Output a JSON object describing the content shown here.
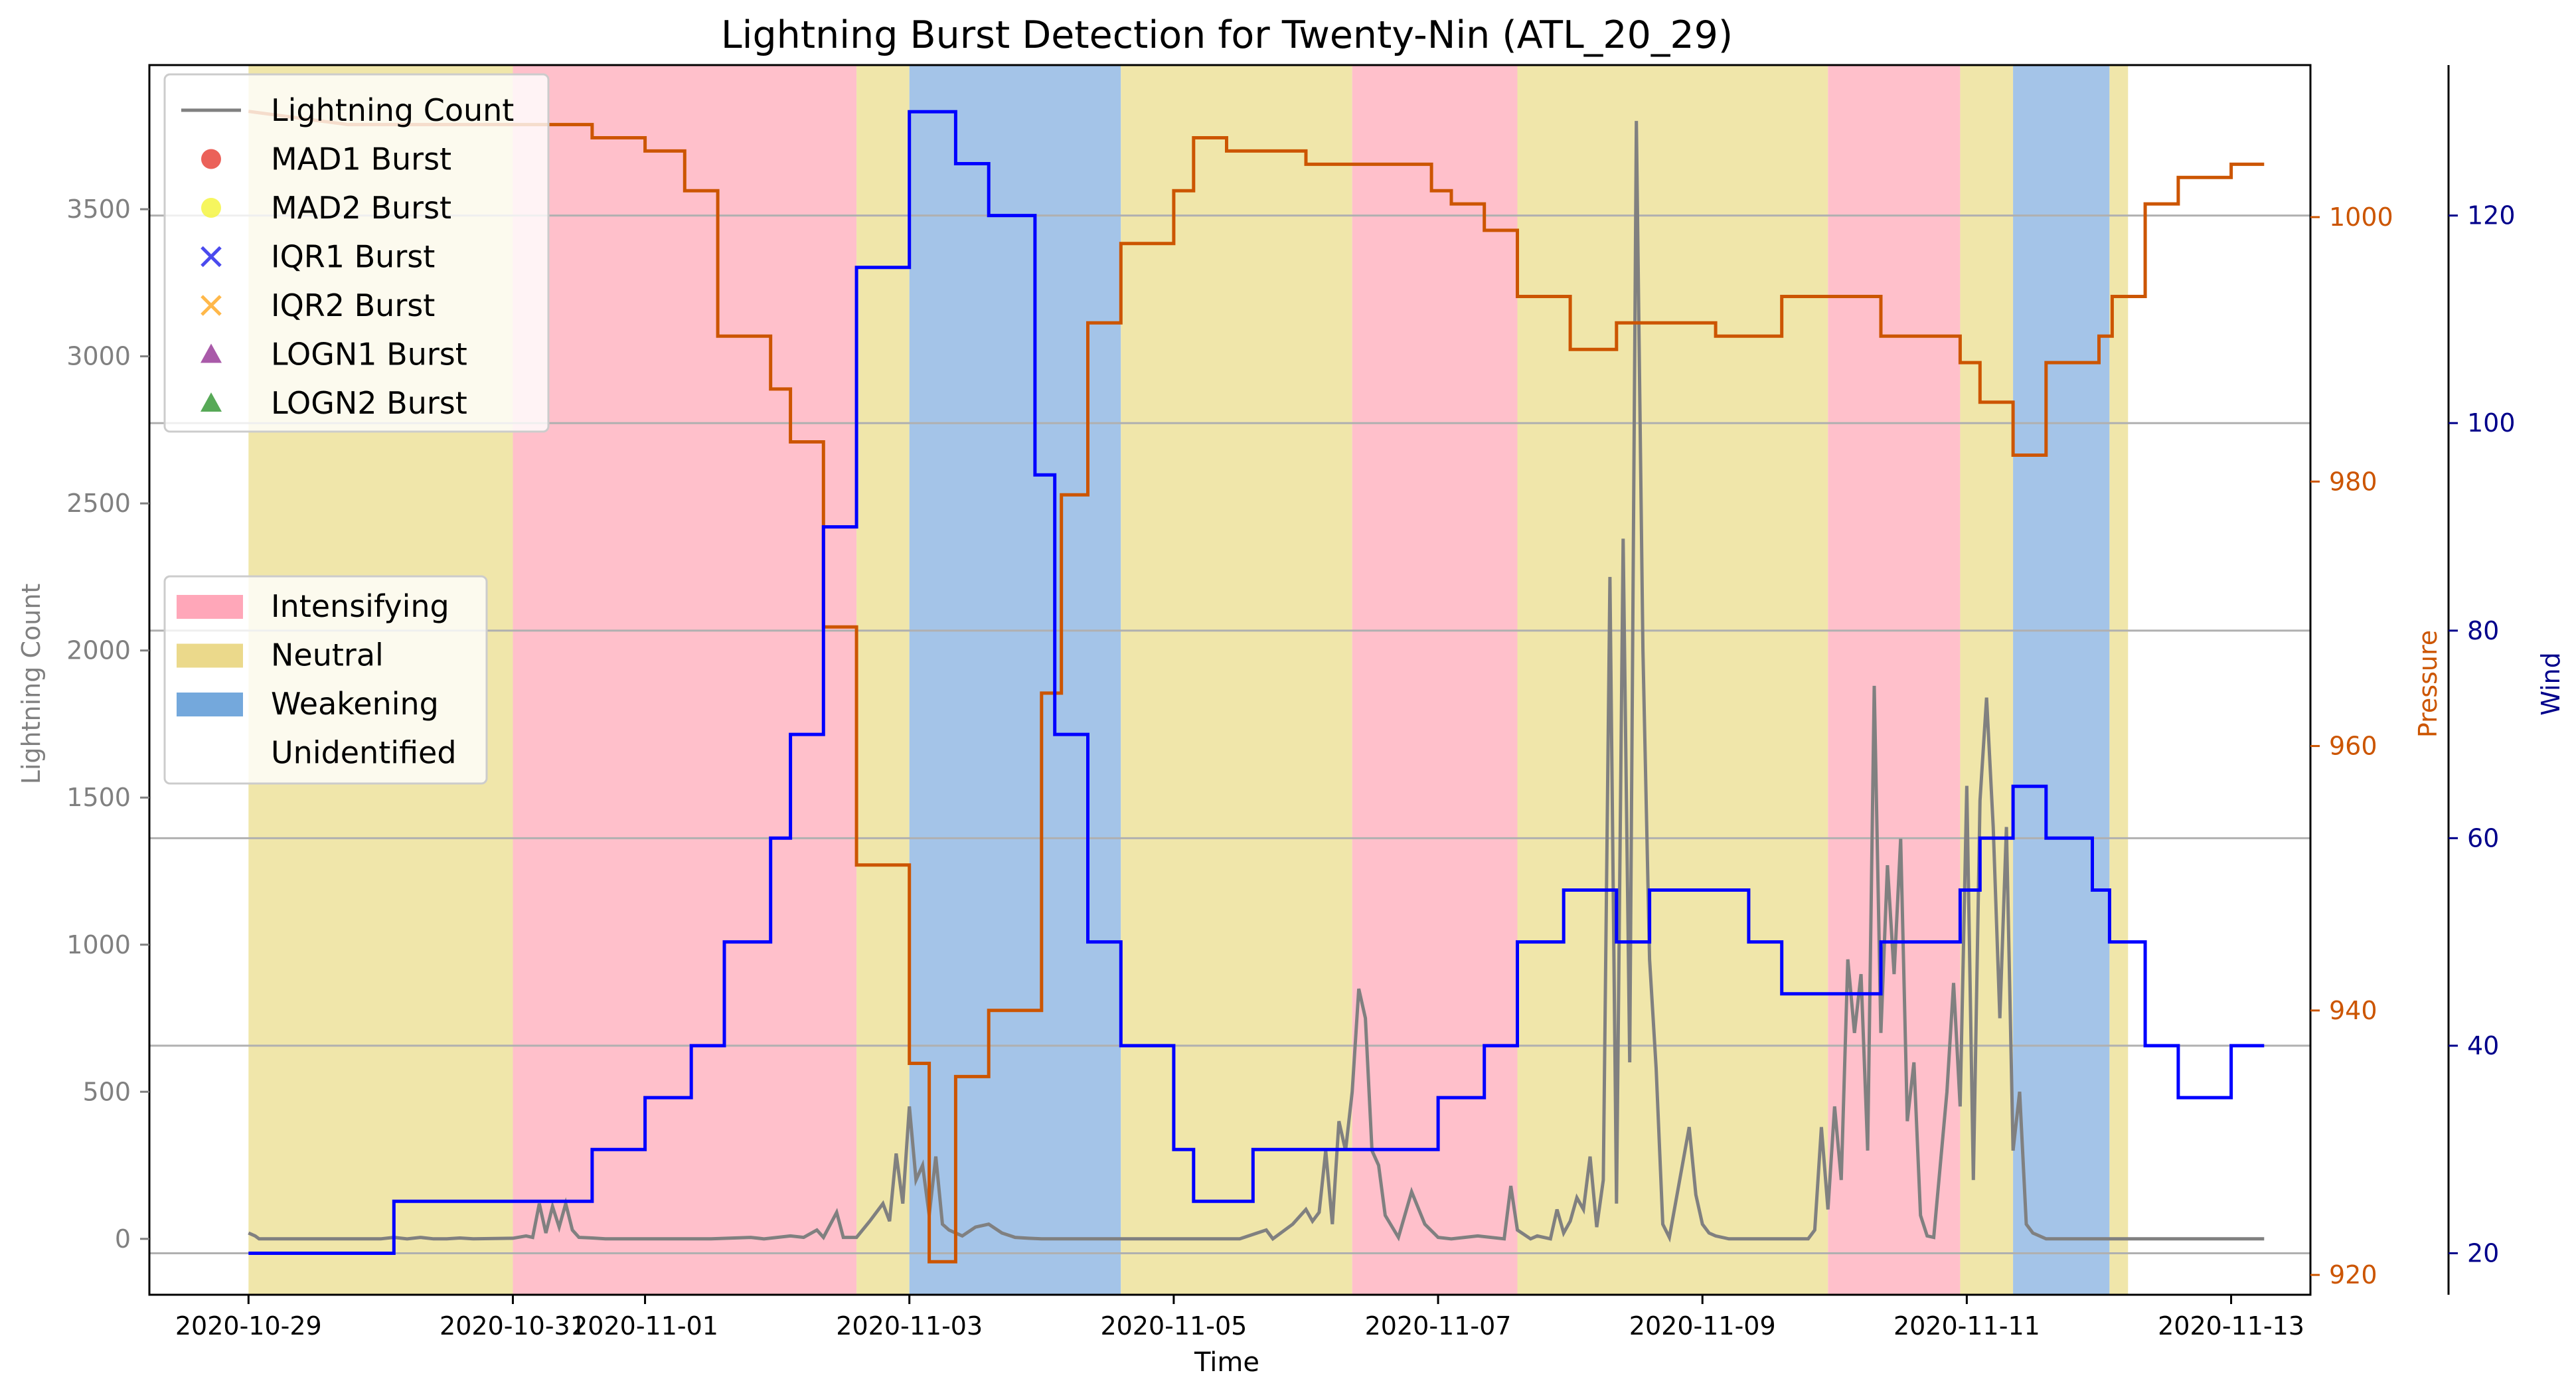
{
  "chart_data": {
    "type": "line",
    "title": "Lightning Burst Detection for Twenty-Nin (ATL_20_29)",
    "xlabel": "Time",
    "ylabel_left": "Lightning Count",
    "ylabel_right1": "Pressure",
    "ylabel_right2": "Wind",
    "x_ticks": [
      "2020-10-29",
      "2020-10-31",
      "2020-11-01",
      "2020-11-03",
      "2020-11-05",
      "2020-11-07",
      "2020-11-09",
      "2020-11-11",
      "2020-11-13"
    ],
    "xlim_days": [
      -0.75,
      15.6
    ],
    "ylim_left": [
      -190,
      3990
    ],
    "yticks_left": [
      0,
      500,
      1000,
      1500,
      2000,
      2500,
      3000,
      3500
    ],
    "ylim_pressure": [
      918.5,
      1011.5
    ],
    "yticks_pressure": [
      920,
      940,
      960,
      980,
      1000
    ],
    "ylim_wind": [
      16,
      134.5
    ],
    "yticks_wind": [
      20,
      40,
      60,
      80,
      100,
      120
    ],
    "colors": {
      "lightning": "#808080",
      "pressure": "#cc5500",
      "wind": "#0000ff",
      "intensifying": "#ffc0cb",
      "neutral": "#f0e6aa",
      "weakening": "#a4c4e8",
      "grid": "#b0b0b0",
      "pressure_axis": "#cc5500",
      "wind_axis": "#00008b"
    },
    "legend_series": [
      {
        "label": "Lightning Count",
        "marker": "line",
        "color": "#808080"
      },
      {
        "label": "MAD1 Burst",
        "marker": "circle",
        "color": "#e8453c"
      },
      {
        "label": "MAD2 Burst",
        "marker": "circle",
        "color": "#f5f542"
      },
      {
        "label": "IQR1 Burst",
        "marker": "x",
        "color": "#4a4aee"
      },
      {
        "label": "IQR2 Burst",
        "marker": "x",
        "color": "#ffb84a"
      },
      {
        "label": "LOGN1 Burst",
        "marker": "triangle",
        "color": "#9a3d9a"
      },
      {
        "label": "LOGN2 Burst",
        "marker": "triangle",
        "color": "#3a9a3a"
      }
    ],
    "legend_phases": [
      {
        "label": "Intensifying",
        "color": "#ffa7b9"
      },
      {
        "label": "Neutral",
        "color": "#ebd98b"
      },
      {
        "label": "Weakening",
        "color": "#74a8dc"
      },
      {
        "label": "Unidentified",
        "color": "none"
      }
    ],
    "phases": [
      {
        "phase": "neutral",
        "start": 0,
        "end": 2
      },
      {
        "phase": "intensifying",
        "start": 2,
        "end": 4.6
      },
      {
        "phase": "neutral",
        "start": 4.6,
        "end": 5
      },
      {
        "phase": "weakening",
        "start": 5,
        "end": 6.6
      },
      {
        "phase": "neutral",
        "start": 6.6,
        "end": 8.35
      },
      {
        "phase": "intensifying",
        "start": 8.35,
        "end": 9.6
      },
      {
        "phase": "neutral",
        "start": 9.6,
        "end": 11.95
      },
      {
        "phase": "intensifying",
        "start": 11.95,
        "end": 12.95
      },
      {
        "phase": "neutral",
        "start": 12.95,
        "end": 13.35
      },
      {
        "phase": "weakening",
        "start": 13.35,
        "end": 14.08
      },
      {
        "phase": "neutral",
        "start": 14.08,
        "end": 14.22
      }
    ],
    "pressure_steps": [
      [
        0,
        1008
      ],
      [
        0.75,
        1007
      ],
      [
        2.6,
        1007
      ],
      [
        2.6,
        1006
      ],
      [
        3.0,
        1006
      ],
      [
        3.0,
        1005
      ],
      [
        3.3,
        1005
      ],
      [
        3.3,
        1002
      ],
      [
        3.55,
        1002
      ],
      [
        3.55,
        991
      ],
      [
        3.95,
        991
      ],
      [
        3.95,
        987
      ],
      [
        4.1,
        987
      ],
      [
        4.1,
        983
      ],
      [
        4.35,
        983
      ],
      [
        4.35,
        969
      ],
      [
        4.6,
        969
      ],
      [
        4.6,
        951
      ],
      [
        5.0,
        951
      ],
      [
        5.0,
        936
      ],
      [
        5.15,
        936
      ],
      [
        5.15,
        921
      ],
      [
        5.35,
        921
      ],
      [
        5.35,
        935
      ],
      [
        5.6,
        935
      ],
      [
        5.6,
        940
      ],
      [
        6.0,
        940
      ],
      [
        6.0,
        964
      ],
      [
        6.15,
        964
      ],
      [
        6.15,
        979
      ],
      [
        6.35,
        979
      ],
      [
        6.35,
        992
      ],
      [
        6.6,
        992
      ],
      [
        6.6,
        998
      ],
      [
        7.0,
        998
      ],
      [
        7.0,
        1002
      ],
      [
        7.15,
        1002
      ],
      [
        7.15,
        1006
      ],
      [
        7.4,
        1006
      ],
      [
        7.4,
        1005
      ],
      [
        8.0,
        1005
      ],
      [
        8.0,
        1004
      ],
      [
        8.95,
        1004
      ],
      [
        8.95,
        1002
      ],
      [
        9.1,
        1002
      ],
      [
        9.1,
        1001
      ],
      [
        9.35,
        1001
      ],
      [
        9.35,
        999
      ],
      [
        9.6,
        999
      ],
      [
        9.6,
        994
      ],
      [
        10.0,
        994
      ],
      [
        10.0,
        990
      ],
      [
        10.35,
        990
      ],
      [
        10.35,
        992
      ],
      [
        11.1,
        992
      ],
      [
        11.1,
        991
      ],
      [
        11.6,
        991
      ],
      [
        11.6,
        994
      ],
      [
        12.35,
        994
      ],
      [
        12.35,
        991
      ],
      [
        12.95,
        991
      ],
      [
        12.95,
        989
      ],
      [
        13.1,
        989
      ],
      [
        13.1,
        986
      ],
      [
        13.35,
        986
      ],
      [
        13.35,
        982
      ],
      [
        13.6,
        982
      ],
      [
        13.6,
        989
      ],
      [
        14.0,
        989
      ],
      [
        14.0,
        991
      ],
      [
        14.1,
        991
      ],
      [
        14.1,
        994
      ],
      [
        14.35,
        994
      ],
      [
        14.35,
        1001
      ],
      [
        14.6,
        1001
      ],
      [
        14.6,
        1003
      ],
      [
        15.0,
        1003
      ],
      [
        15.0,
        1004
      ],
      [
        15.25,
        1004
      ]
    ],
    "wind_steps": [
      [
        0,
        20
      ],
      [
        1.1,
        20
      ],
      [
        1.1,
        25
      ],
      [
        2.6,
        25
      ],
      [
        2.6,
        30
      ],
      [
        3.0,
        30
      ],
      [
        3.0,
        35
      ],
      [
        3.35,
        35
      ],
      [
        3.35,
        40
      ],
      [
        3.6,
        40
      ],
      [
        3.6,
        50
      ],
      [
        3.95,
        50
      ],
      [
        3.95,
        60
      ],
      [
        4.1,
        60
      ],
      [
        4.1,
        70
      ],
      [
        4.35,
        70
      ],
      [
        4.35,
        90
      ],
      [
        4.6,
        90
      ],
      [
        4.6,
        115
      ],
      [
        5.0,
        115
      ],
      [
        5.0,
        130
      ],
      [
        5.35,
        130
      ],
      [
        5.35,
        125
      ],
      [
        5.6,
        125
      ],
      [
        5.6,
        120
      ],
      [
        5.95,
        120
      ],
      [
        5.95,
        95
      ],
      [
        6.1,
        95
      ],
      [
        6.1,
        70
      ],
      [
        6.35,
        70
      ],
      [
        6.35,
        50
      ],
      [
        6.6,
        50
      ],
      [
        6.6,
        40
      ],
      [
        7.0,
        40
      ],
      [
        7.0,
        30
      ],
      [
        7.15,
        30
      ],
      [
        7.15,
        25
      ],
      [
        7.6,
        25
      ],
      [
        7.6,
        30
      ],
      [
        9.0,
        30
      ],
      [
        9.0,
        35
      ],
      [
        9.35,
        35
      ],
      [
        9.35,
        40
      ],
      [
        9.6,
        40
      ],
      [
        9.6,
        50
      ],
      [
        9.95,
        50
      ],
      [
        9.95,
        55
      ],
      [
        10.35,
        55
      ],
      [
        10.35,
        50
      ],
      [
        10.6,
        50
      ],
      [
        10.6,
        55
      ],
      [
        11.35,
        55
      ],
      [
        11.35,
        50
      ],
      [
        11.6,
        50
      ],
      [
        11.6,
        45
      ],
      [
        12.35,
        45
      ],
      [
        12.35,
        50
      ],
      [
        12.95,
        50
      ],
      [
        12.95,
        55
      ],
      [
        13.1,
        55
      ],
      [
        13.1,
        60
      ],
      [
        13.35,
        60
      ],
      [
        13.35,
        65
      ],
      [
        13.6,
        65
      ],
      [
        13.6,
        60
      ],
      [
        13.95,
        60
      ],
      [
        13.95,
        55
      ],
      [
        14.08,
        55
      ],
      [
        14.08,
        50
      ],
      [
        14.35,
        50
      ],
      [
        14.35,
        40
      ],
      [
        14.6,
        40
      ],
      [
        14.6,
        35
      ],
      [
        15.0,
        35
      ],
      [
        15.0,
        40
      ],
      [
        15.25,
        40
      ]
    ],
    "lightning_points": [
      [
        0,
        20
      ],
      [
        0.05,
        10
      ],
      [
        0.08,
        0
      ],
      [
        1.0,
        0
      ],
      [
        1.1,
        5
      ],
      [
        1.2,
        0
      ],
      [
        1.3,
        5
      ],
      [
        1.4,
        0
      ],
      [
        1.5,
        0
      ],
      [
        1.6,
        3
      ],
      [
        1.7,
        0
      ],
      [
        2.0,
        2
      ],
      [
        2.1,
        10
      ],
      [
        2.15,
        5
      ],
      [
        2.2,
        120
      ],
      [
        2.25,
        20
      ],
      [
        2.3,
        110
      ],
      [
        2.35,
        40
      ],
      [
        2.4,
        120
      ],
      [
        2.45,
        30
      ],
      [
        2.5,
        5
      ],
      [
        2.6,
        3
      ],
      [
        2.7,
        0
      ],
      [
        3.5,
        0
      ],
      [
        3.8,
        5
      ],
      [
        3.9,
        0
      ],
      [
        4.1,
        10
      ],
      [
        4.2,
        5
      ],
      [
        4.3,
        30
      ],
      [
        4.35,
        5
      ],
      [
        4.45,
        90
      ],
      [
        4.5,
        5
      ],
      [
        4.6,
        5
      ],
      [
        4.7,
        60
      ],
      [
        4.8,
        120
      ],
      [
        4.85,
        60
      ],
      [
        4.9,
        290
      ],
      [
        4.95,
        120
      ],
      [
        5.0,
        450
      ],
      [
        5.05,
        200
      ],
      [
        5.1,
        250
      ],
      [
        5.15,
        80
      ],
      [
        5.2,
        280
      ],
      [
        5.25,
        50
      ],
      [
        5.3,
        30
      ],
      [
        5.4,
        10
      ],
      [
        5.5,
        40
      ],
      [
        5.6,
        50
      ],
      [
        5.7,
        20
      ],
      [
        5.8,
        5
      ],
      [
        5.9,
        2
      ],
      [
        6.0,
        0
      ],
      [
        7.5,
        0
      ],
      [
        7.7,
        30
      ],
      [
        7.75,
        0
      ],
      [
        7.9,
        50
      ],
      [
        8.0,
        100
      ],
      [
        8.05,
        60
      ],
      [
        8.1,
        90
      ],
      [
        8.15,
        300
      ],
      [
        8.2,
        50
      ],
      [
        8.25,
        400
      ],
      [
        8.3,
        300
      ],
      [
        8.35,
        500
      ],
      [
        8.4,
        850
      ],
      [
        8.45,
        750
      ],
      [
        8.5,
        300
      ],
      [
        8.55,
        250
      ],
      [
        8.6,
        80
      ],
      [
        8.7,
        5
      ],
      [
        8.8,
        160
      ],
      [
        8.9,
        50
      ],
      [
        9.0,
        5
      ],
      [
        9.1,
        0
      ],
      [
        9.2,
        5
      ],
      [
        9.3,
        10
      ],
      [
        9.5,
        0
      ],
      [
        9.55,
        180
      ],
      [
        9.6,
        30
      ],
      [
        9.7,
        0
      ],
      [
        9.75,
        10
      ],
      [
        9.85,
        0
      ],
      [
        9.9,
        100
      ],
      [
        9.95,
        20
      ],
      [
        10.0,
        60
      ],
      [
        10.05,
        140
      ],
      [
        10.1,
        100
      ],
      [
        10.15,
        280
      ],
      [
        10.2,
        40
      ],
      [
        10.25,
        200
      ],
      [
        10.3,
        2250
      ],
      [
        10.35,
        120
      ],
      [
        10.4,
        2380
      ],
      [
        10.45,
        600
      ],
      [
        10.5,
        3800
      ],
      [
        10.55,
        2000
      ],
      [
        10.6,
        950
      ],
      [
        10.65,
        580
      ],
      [
        10.7,
        50
      ],
      [
        10.75,
        5
      ],
      [
        10.9,
        380
      ],
      [
        10.95,
        150
      ],
      [
        11.0,
        50
      ],
      [
        11.05,
        20
      ],
      [
        11.1,
        10
      ],
      [
        11.2,
        0
      ],
      [
        11.8,
        0
      ],
      [
        11.85,
        30
      ],
      [
        11.9,
        380
      ],
      [
        11.95,
        100
      ],
      [
        12.0,
        450
      ],
      [
        12.05,
        200
      ],
      [
        12.1,
        950
      ],
      [
        12.15,
        700
      ],
      [
        12.2,
        900
      ],
      [
        12.25,
        300
      ],
      [
        12.3,
        1880
      ],
      [
        12.35,
        700
      ],
      [
        12.4,
        1270
      ],
      [
        12.45,
        900
      ],
      [
        12.5,
        1360
      ],
      [
        12.55,
        400
      ],
      [
        12.6,
        600
      ],
      [
        12.65,
        80
      ],
      [
        12.7,
        10
      ],
      [
        12.75,
        5
      ],
      [
        12.85,
        500
      ],
      [
        12.9,
        870
      ],
      [
        12.95,
        450
      ],
      [
        13.0,
        1540
      ],
      [
        13.05,
        200
      ],
      [
        13.1,
        1490
      ],
      [
        13.15,
        1840
      ],
      [
        13.2,
        1400
      ],
      [
        13.25,
        750
      ],
      [
        13.3,
        1400
      ],
      [
        13.35,
        300
      ],
      [
        13.4,
        500
      ],
      [
        13.45,
        50
      ],
      [
        13.5,
        20
      ],
      [
        13.6,
        0
      ],
      [
        15.25,
        0
      ]
    ]
  }
}
